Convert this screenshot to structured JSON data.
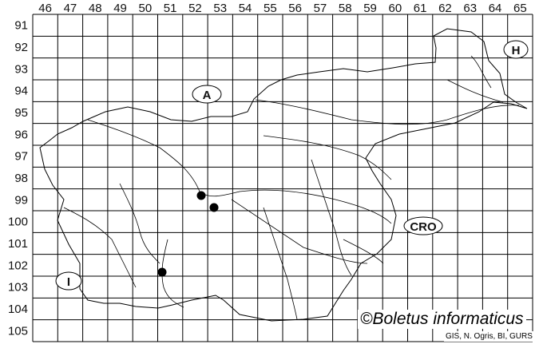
{
  "map": {
    "column_labels": [
      "46",
      "47",
      "48",
      "49",
      "50",
      "51",
      "52",
      "53",
      "54",
      "55",
      "56",
      "57",
      "58",
      "59",
      "60",
      "61",
      "62",
      "63",
      "64",
      "65"
    ],
    "row_labels": [
      "91",
      "92",
      "93",
      "94",
      "95",
      "96",
      "97",
      "98",
      "99",
      "100",
      "101",
      "102",
      "103",
      "104",
      "105"
    ],
    "country_labels": {
      "austria": "A",
      "hungary": "H",
      "croatia": "CRO",
      "italy": "I"
    },
    "occurrences": [
      {
        "column": "52",
        "row": "99"
      },
      {
        "column": "52",
        "row": "99"
      },
      {
        "column": "51",
        "row": "102"
      }
    ],
    "credit": "©Boletus informaticus",
    "source": "GIS, N. Ogris, BI, GURS",
    "colors": {
      "lines": "#000000",
      "background": "#ffffff",
      "dots": "#000000"
    }
  }
}
